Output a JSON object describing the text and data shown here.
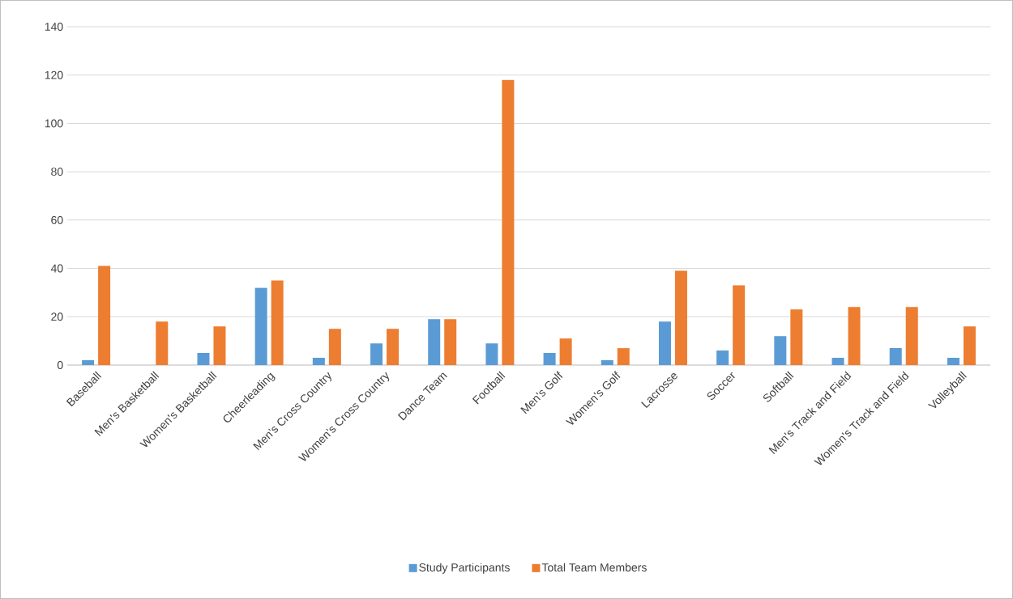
{
  "chart_data": {
    "type": "bar",
    "categories": [
      "Baseball",
      "Men's Basketball",
      "Women's Basketball",
      "Cheerleading",
      "Men's Cross Country",
      "Women's Cross Country",
      "Dance Team",
      "Football",
      "Men's Golf",
      "Women's Golf",
      "Lacrosse",
      "Soccer",
      "Softball",
      "Men's Track and Field",
      "Women's Track and Field",
      "Volleyball"
    ],
    "series": [
      {
        "name": "Study Participants",
        "color": "#5b9bd5",
        "values": [
          2,
          0,
          5,
          32,
          3,
          9,
          19,
          9,
          5,
          2,
          18,
          6,
          12,
          3,
          7,
          3
        ]
      },
      {
        "name": "Total Team Members",
        "color": "#ed7d31",
        "values": [
          41,
          18,
          16,
          35,
          15,
          15,
          19,
          118,
          11,
          7,
          39,
          33,
          23,
          24,
          24,
          16
        ]
      }
    ],
    "ylim": [
      0,
      140
    ],
    "yticks": [
      0,
      20,
      40,
      60,
      80,
      100,
      120,
      140
    ],
    "grid": "y",
    "legend": "bottom"
  }
}
